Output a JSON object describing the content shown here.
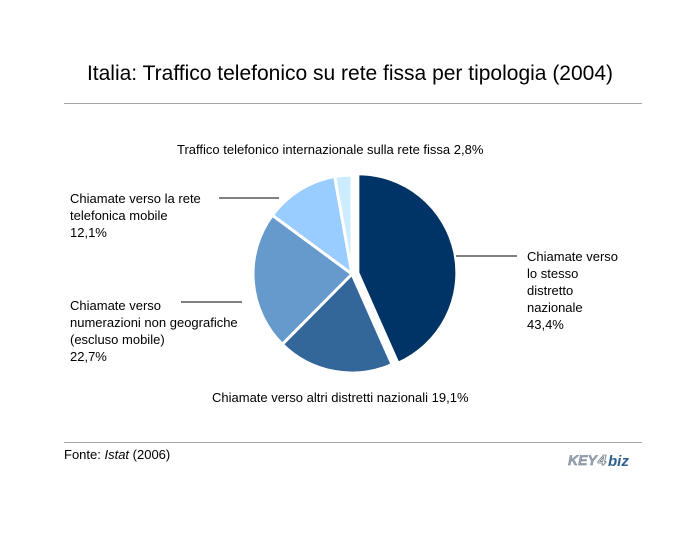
{
  "header": {
    "title": "Italia: Traffico telefonico su rete fissa per tipologia (2004)"
  },
  "footer": {
    "source_prefix": "Fonte: ",
    "source_name": "Istat",
    "source_year": " (2006)",
    "logo_text": "KEY4biz"
  },
  "colors": {
    "rule": "#a6a6a6",
    "leader": "#000000"
  },
  "chart_data": {
    "type": "pie",
    "title": "Italia: Traffico telefonico su rete fissa per tipologia (2004)",
    "start_angle_deg": 0,
    "direction": "clockwise",
    "slices": [
      {
        "label": "Chiamate verso lo stesso distretto nazionale",
        "display": "Chiamate verso\nlo stesso\ndistretto\nnazionale\n43,4%",
        "value": 43.4,
        "color": "#003366",
        "exploded": true
      },
      {
        "label": "Chiamate verso altri distretti nazionali",
        "display": "Chiamate verso altri distretti nazionali 19,1%",
        "value": 19.1,
        "color": "#336699"
      },
      {
        "label": "Chiamate verso numerazioni non geografiche (escluso mobile)",
        "display": "Chiamate verso\nnumerazioni non geografiche\n(escluso mobile)\n22,7%",
        "value": 22.7,
        "color": "#6699cc"
      },
      {
        "label": "Chiamate verso la rete telefonica mobile",
        "display": "Chiamate verso la rete\ntelefonica mobile\n12,1%",
        "value": 12.1,
        "color": "#99ccff"
      },
      {
        "label": "Traffico telefonico internazionale sulla rete fissa",
        "display": "Traffico telefonico internazionale sulla rete fissa 2,8%",
        "value": 2.8,
        "color": "#ccecff"
      }
    ]
  }
}
